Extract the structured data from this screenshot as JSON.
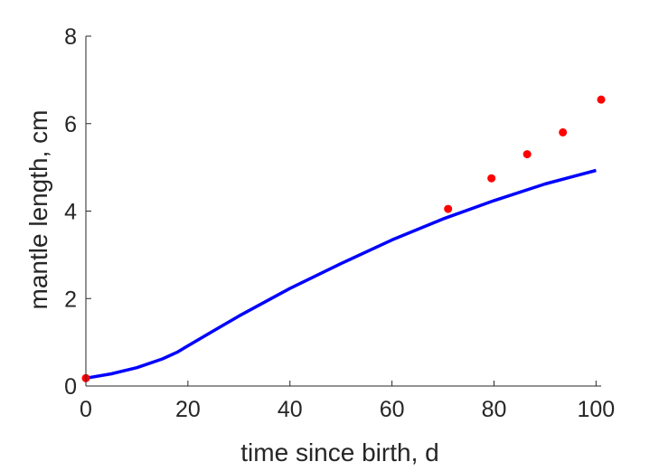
{
  "chart_data": {
    "type": "line",
    "title": "",
    "xlabel": "time since birth, d",
    "ylabel": "mantle length, cm",
    "xlim": [
      0,
      101
    ],
    "ylim": [
      0,
      8
    ],
    "xticks": [
      0,
      20,
      40,
      60,
      80,
      100
    ],
    "yticks": [
      0,
      2,
      4,
      6,
      8
    ],
    "grid": false,
    "legend": "none",
    "series": [
      {
        "kind": "line",
        "color": "#0000ff",
        "x": [
          0,
          5,
          10,
          15,
          18,
          20,
          25,
          30,
          40,
          50,
          60,
          70,
          80,
          90,
          100
        ],
        "y": [
          0.18,
          0.28,
          0.42,
          0.62,
          0.78,
          0.92,
          1.26,
          1.6,
          2.23,
          2.8,
          3.34,
          3.82,
          4.24,
          4.62,
          4.93
        ]
      },
      {
        "kind": "scatter",
        "color": "#ff0000",
        "x": [
          0,
          71,
          79.5,
          86.5,
          93.5,
          101
        ],
        "y": [
          0.18,
          4.05,
          4.75,
          5.3,
          5.8,
          6.55
        ]
      }
    ]
  }
}
